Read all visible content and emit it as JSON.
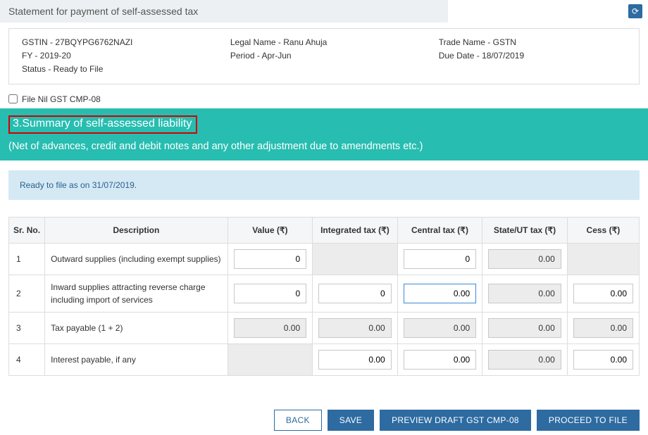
{
  "header": {
    "title": "Statement for payment of self-assessed tax",
    "refresh_icon": "⟳"
  },
  "info": {
    "gstin_label": "GSTIN - 27BQYPG6762NAZI",
    "fy_label": "FY - 2019-20",
    "status_label": "Status - Ready to File",
    "legal_name_label": "Legal Name - Ranu Ahuja",
    "period_label": "Period - Apr-Jun",
    "trade_name_label": "Trade Name - GSTN",
    "due_date_label": "Due Date - 18/07/2019"
  },
  "nil": {
    "label": "File Nil GST CMP-08"
  },
  "section": {
    "title": "3.Summary of self-assessed liability",
    "sub": "(Net of advances, credit and debit notes and any other adjustment due to amendments etc.)"
  },
  "ready_strip": "Ready to file as on 31/07/2019.",
  "table": {
    "headers": {
      "sr": "Sr. No.",
      "desc": "Description",
      "value": "Value (₹)",
      "igst": "Integrated tax (₹)",
      "cgst": "Central tax (₹)",
      "sgst": "State/UT tax (₹)",
      "cess": "Cess (₹)"
    },
    "rows": [
      {
        "sr": "1",
        "desc": "Outward supplies (including exempt supplies)",
        "value": "0",
        "igst": null,
        "cgst": "0",
        "sgst": "0.00",
        "sgst_ro": true,
        "cess": null,
        "value_ro": false,
        "cgst_ro": false
      },
      {
        "sr": "2",
        "desc": "Inward supplies attracting reverse charge including import of services",
        "value": "0",
        "igst": "0",
        "cgst": "0.00",
        "cgst_focus": true,
        "sgst": "0.00",
        "sgst_ro": true,
        "cess": "0.00",
        "value_ro": false,
        "igst_ro": false,
        "cgst_ro": false,
        "cess_ro": false
      },
      {
        "sr": "3",
        "desc": "Tax payable (1 + 2)",
        "value": "0.00",
        "value_ro": true,
        "igst": "0.00",
        "igst_ro": true,
        "cgst": "0.00",
        "cgst_ro": true,
        "sgst": "0.00",
        "sgst_ro": true,
        "cess": "0.00",
        "cess_ro": true
      },
      {
        "sr": "4",
        "desc": "Interest payable, if any",
        "value": null,
        "igst": "0.00",
        "igst_ro": false,
        "cgst": "0.00",
        "cgst_ro": false,
        "sgst": "0.00",
        "sgst_ro": true,
        "cess": "0.00",
        "cess_ro": false
      }
    ]
  },
  "buttons": {
    "back": "BACK",
    "save": "SAVE",
    "preview": "PREVIEW DRAFT GST CMP-08",
    "proceed": "PROCEED TO FILE"
  },
  "colors": {
    "banner_bg": "#27bdb0",
    "highlight_border": "#d20000",
    "ready_bg": "#d4e9f4",
    "btn_primary": "#2d6ba1"
  }
}
